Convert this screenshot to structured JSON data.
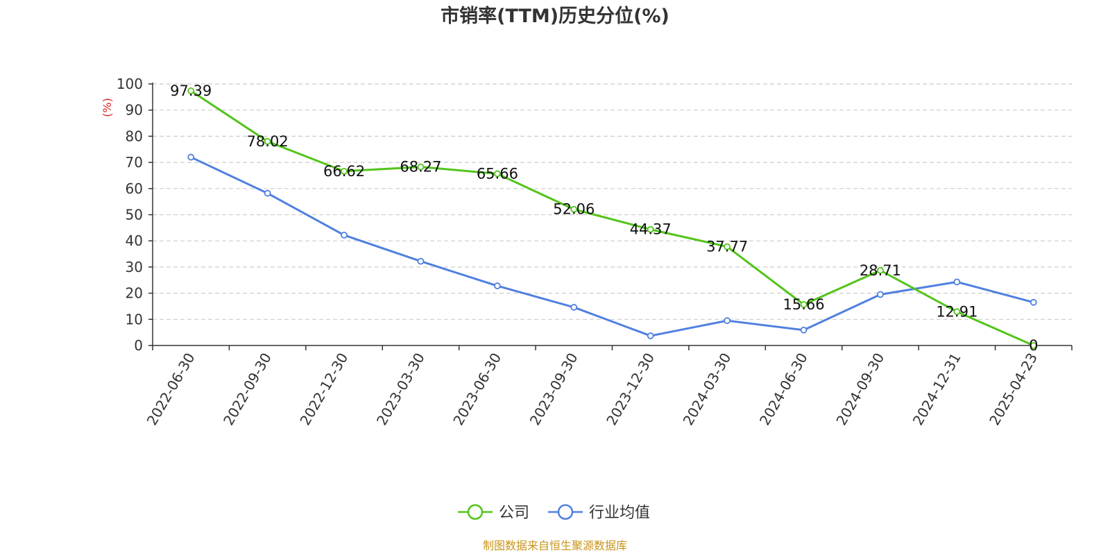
{
  "chart_data": {
    "type": "line",
    "title": "市销率(TTM)历史分位(%)",
    "ylabel": "(%)",
    "xlabel": "",
    "categories": [
      "2022-06-30",
      "2022-09-30",
      "2022-12-30",
      "2023-03-30",
      "2023-06-30",
      "2023-09-30",
      "2023-12-30",
      "2024-03-30",
      "2024-06-30",
      "2024-09-30",
      "2024-12-31",
      "2025-04-23"
    ],
    "yticks": [
      "0",
      "10",
      "20",
      "30",
      "40",
      "50",
      "60",
      "70",
      "80",
      "90",
      "100"
    ],
    "ylim": [
      0,
      100
    ],
    "grid": true,
    "legend_position": "bottom-center",
    "series": [
      {
        "name": "公司",
        "color": "#52c41a",
        "values": [
          97.39,
          78.02,
          66.62,
          68.27,
          65.66,
          52.06,
          44.37,
          37.77,
          15.66,
          28.71,
          12.91,
          0
        ],
        "labels": [
          "97.39",
          "78.02",
          "66.62",
          "68.27",
          "65.66",
          "52.06",
          "44.37",
          "37.77",
          "15.66",
          "28.71",
          "12.91",
          "0"
        ]
      },
      {
        "name": "行业均值",
        "color": "#4f80e0",
        "values": [
          72,
          58.2,
          42.2,
          32.2,
          22.8,
          14.6,
          3.7,
          9.5,
          5.9,
          19.5,
          24.3,
          16.5
        ]
      }
    ]
  },
  "footer": {
    "source": "制图数据来自恒生聚源数据库",
    "source_color": "#c8951a"
  },
  "colors": {
    "axis": "#333333",
    "grid": "#cccccc",
    "ylabel": "#e02020"
  }
}
